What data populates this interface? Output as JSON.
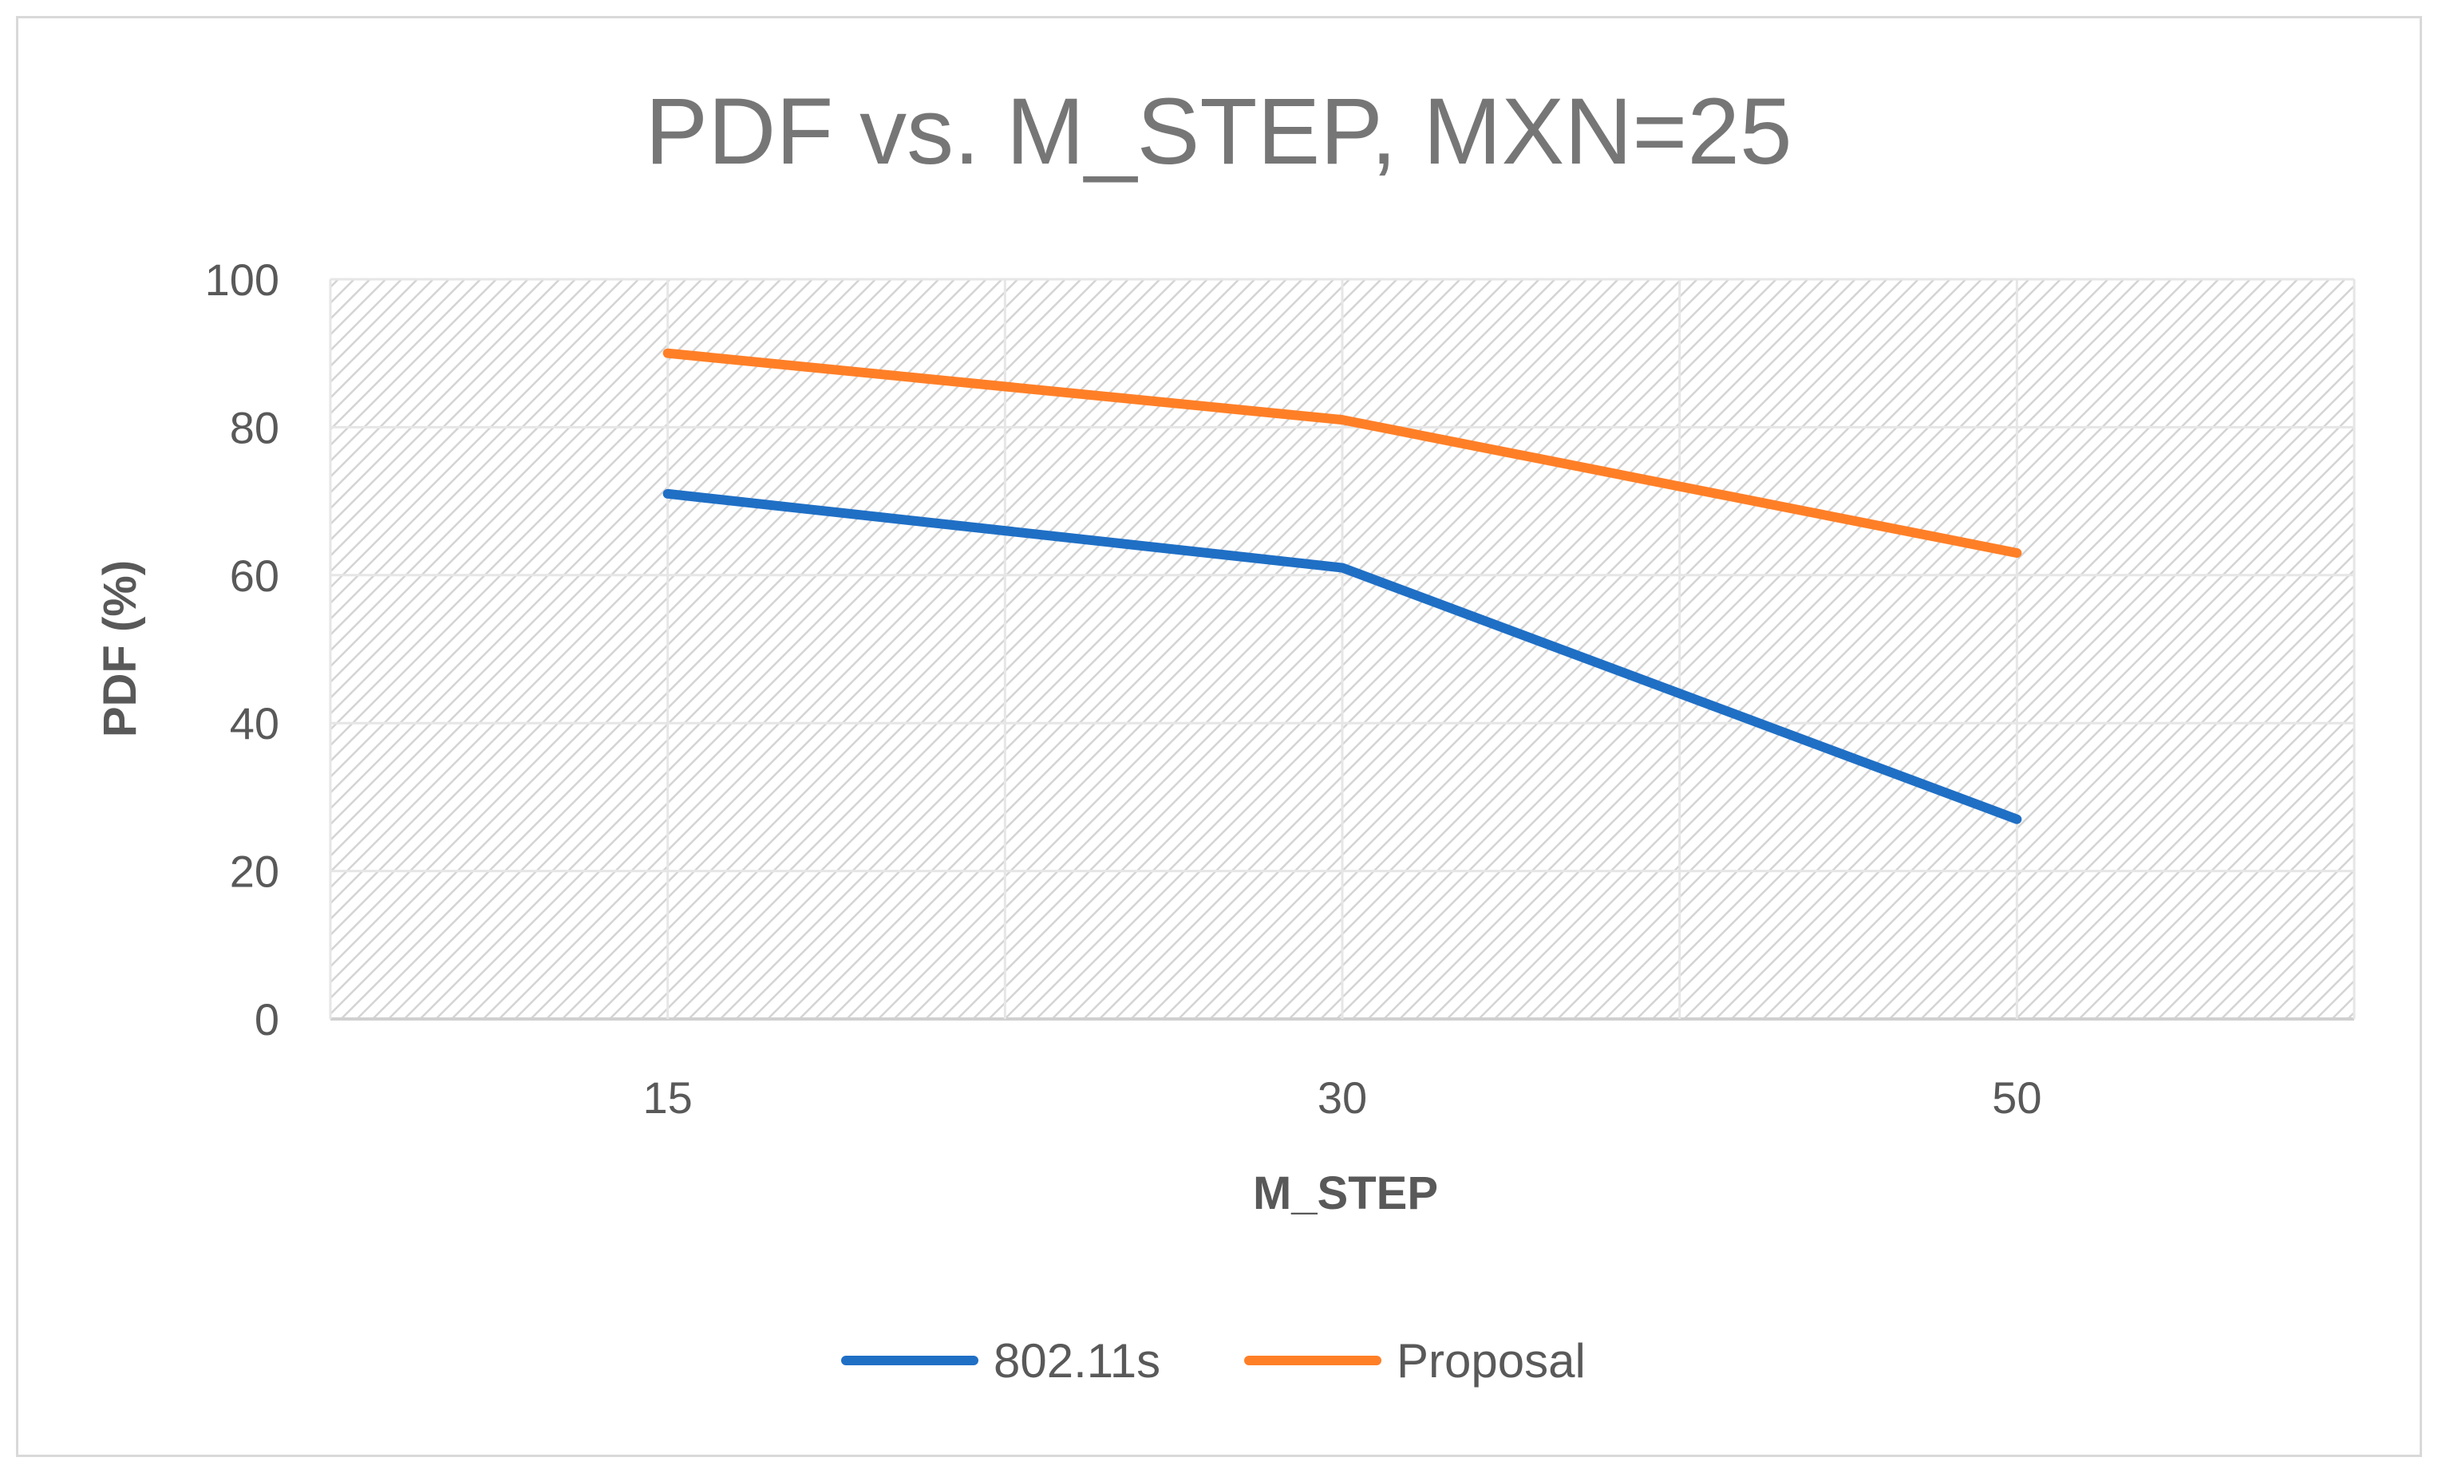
{
  "chart_data": {
    "type": "line",
    "title": "PDF vs. M_STEP, MXN=25",
    "xlabel": "M_STEP",
    "ylabel": "PDF (%)",
    "categories": [
      "15",
      "30",
      "50"
    ],
    "ylim": [
      0,
      100
    ],
    "yticks": [
      "0",
      "20",
      "40",
      "60",
      "80",
      "100"
    ],
    "grid": true,
    "legend_position": "bottom",
    "series": [
      {
        "name": "802.11s",
        "color": "#1f6fc5",
        "values": [
          71,
          61,
          27
        ]
      },
      {
        "name": "Proposal",
        "color": "#ff7f27",
        "values": [
          90,
          81,
          63
        ]
      }
    ]
  }
}
